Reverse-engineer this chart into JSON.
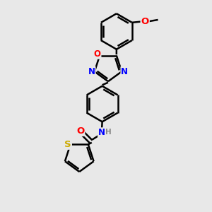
{
  "background_color": "#e8e8e8",
  "line_color": "#000000",
  "bond_width": 1.8,
  "atom_colors": {
    "N": "#0000ff",
    "O": "#ff0000",
    "S": "#ccaa00",
    "H": "#888888",
    "C": "#000000"
  },
  "font_size": 8.5,
  "figsize": [
    3.0,
    3.0
  ],
  "dpi": 100
}
